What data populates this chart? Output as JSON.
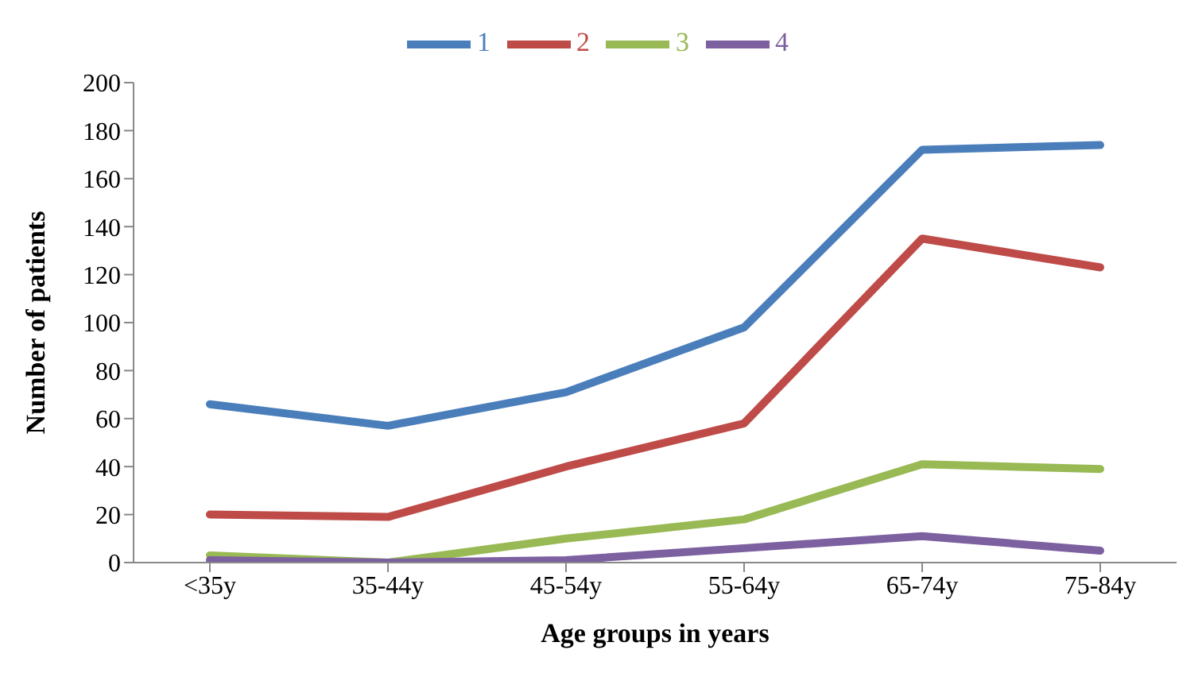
{
  "chart_data": {
    "type": "line",
    "xlabel": "Age groups in years",
    "ylabel": "Number of patients",
    "categories": [
      "<35y",
      "35-44y",
      "45-54y",
      "55-64y",
      "65-74y",
      "75-84y"
    ],
    "series": [
      {
        "name": "1",
        "color": "#4a7ebb",
        "values": [
          66,
          57,
          71,
          98,
          172,
          174
        ]
      },
      {
        "name": "2",
        "color": "#be4b48",
        "values": [
          20,
          19,
          40,
          58,
          135,
          123
        ]
      },
      {
        "name": "3",
        "color": "#98b954",
        "values": [
          3,
          0,
          10,
          18,
          41,
          39
        ]
      },
      {
        "name": "4",
        "color": "#7d60a0",
        "values": [
          1,
          0,
          1,
          6,
          11,
          5
        ]
      }
    ],
    "ylim": [
      0,
      200
    ],
    "yticks": [
      0,
      20,
      40,
      60,
      80,
      100,
      120,
      140,
      160,
      180,
      200
    ],
    "grid": false,
    "legend": "top",
    "marker": "none",
    "line_style": "solid"
  }
}
